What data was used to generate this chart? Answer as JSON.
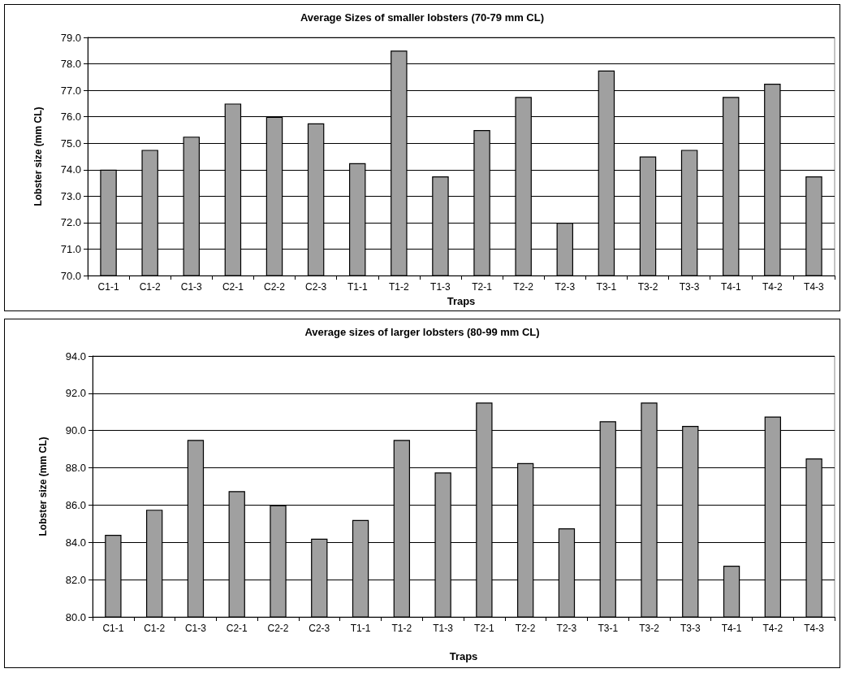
{
  "chart_data": [
    {
      "type": "bar",
      "title": "Average Sizes of smaller lobsters (70-79 mm CL)",
      "xlabel": "Traps",
      "ylabel": "Lobster size (mm CL)",
      "categories": [
        "C1-1",
        "C1-2",
        "C1-3",
        "C2-1",
        "C2-2",
        "C2-3",
        "T1-1",
        "T1-2",
        "T1-3",
        "T2-1",
        "T2-2",
        "T2-3",
        "T3-1",
        "T3-2",
        "T3-3",
        "T4-1",
        "T4-2",
        "T4-3"
      ],
      "values": [
        74.0,
        74.75,
        75.25,
        76.5,
        76.0,
        75.75,
        74.25,
        78.5,
        73.75,
        75.5,
        76.75,
        72.0,
        77.75,
        74.5,
        74.75,
        76.75,
        77.25,
        73.75
      ],
      "color": "#a0a0a0",
      "ylim": [
        70,
        79
      ],
      "yticks": [
        {
          "value": 70,
          "label": "70.0"
        },
        {
          "value": 71,
          "label": "71.0"
        },
        {
          "value": 72,
          "label": "72.0"
        },
        {
          "value": 73,
          "label": "73.0"
        },
        {
          "value": 74,
          "label": "74.0"
        },
        {
          "value": 75,
          "label": "75.0"
        },
        {
          "value": 76,
          "label": "76.0"
        },
        {
          "value": 77,
          "label": "77.0"
        },
        {
          "value": 78,
          "label": "78.0"
        },
        {
          "value": 79,
          "label": "79.0"
        }
      ],
      "grid": "y"
    },
    {
      "type": "bar",
      "title": "Average sizes of larger lobsters (80-99 mm CL)",
      "xlabel": "Traps",
      "ylabel": "Lobster size (mm CL)",
      "categories": [
        "C1-1",
        "C1-2",
        "C1-3",
        "C2-1",
        "C2-2",
        "C2-3",
        "T1-1",
        "T1-2",
        "T1-3",
        "T2-1",
        "T2-2",
        "T2-3",
        "T3-1",
        "T3-2",
        "T3-3",
        "T4-1",
        "T4-2",
        "T4-3"
      ],
      "values": [
        84.4,
        85.75,
        89.5,
        86.75,
        86.0,
        84.2,
        85.2,
        89.5,
        87.75,
        91.5,
        88.25,
        84.75,
        90.5,
        91.5,
        90.25,
        82.75,
        90.75,
        88.5
      ],
      "color": "#a0a0a0",
      "ylim": [
        80,
        94
      ],
      "yticks": [
        {
          "value": 80,
          "label": "80.0"
        },
        {
          "value": 82,
          "label": "82.0"
        },
        {
          "value": 84,
          "label": "84.0"
        },
        {
          "value": 86,
          "label": "86.0"
        },
        {
          "value": 88,
          "label": "88.0"
        },
        {
          "value": 90,
          "label": "90.0"
        },
        {
          "value": 92,
          "label": "92.0"
        },
        {
          "value": 94,
          "label": "94.0"
        }
      ],
      "grid": "y"
    }
  ]
}
